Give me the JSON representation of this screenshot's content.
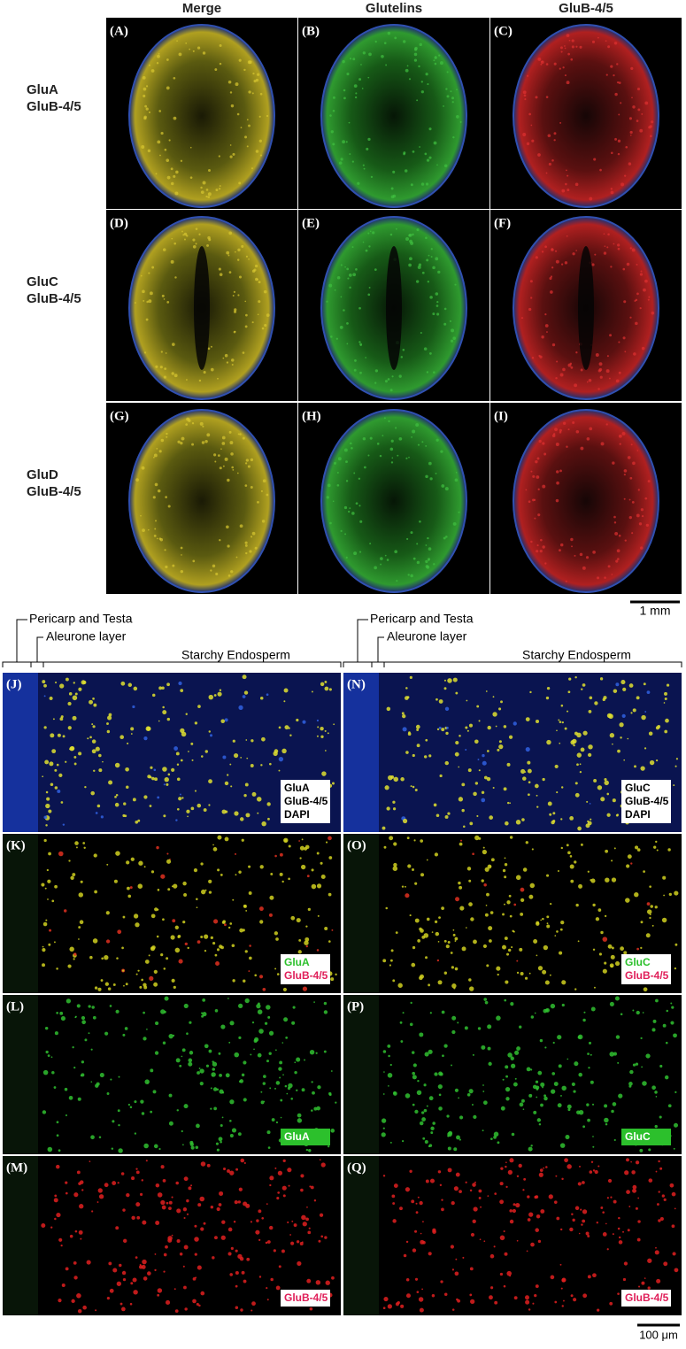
{
  "column_headers": [
    "Merge",
    "Glutelins",
    "GluB-4/5"
  ],
  "row_labels": [
    [
      "GluA",
      "GluB-4/5"
    ],
    [
      "GluC",
      "GluB-4/5"
    ],
    [
      "GluD",
      "GluB-4/5"
    ]
  ],
  "top_panels": [
    [
      "(A)",
      "(B)",
      "(C)"
    ],
    [
      "(D)",
      "(E)",
      "(F)"
    ],
    [
      "(G)",
      "(H)",
      "(I)"
    ]
  ],
  "top_scale_bar": "1 mm",
  "lower_columns": [
    {
      "pericarp_label": "Pericarp and Testa",
      "aleurone_label": "Aleurone layer",
      "endosperm_label": "Starchy Endosperm",
      "panels": [
        {
          "letter": "(J)",
          "legend": [
            "GluA",
            "GluB-4/5",
            "DAPI"
          ]
        },
        {
          "letter": "(K)",
          "legend": [
            "GluA",
            "GluB-4/5"
          ]
        },
        {
          "letter": "(L)",
          "legend": [
            "GluA"
          ]
        },
        {
          "letter": "(M)",
          "legend": [
            "GluB-4/5"
          ]
        }
      ]
    },
    {
      "pericarp_label": "Pericarp and Testa",
      "aleurone_label": "Aleurone layer",
      "endosperm_label": "Starchy Endosperm",
      "panels": [
        {
          "letter": "(N)",
          "legend": [
            "GluC",
            "GluB-4/5",
            "DAPI"
          ]
        },
        {
          "letter": "(O)",
          "legend": [
            "GluC",
            "GluB-4/5"
          ]
        },
        {
          "letter": "(P)",
          "legend": [
            "GluC"
          ]
        },
        {
          "letter": "(Q)",
          "legend": [
            "GluB-4/5"
          ]
        }
      ]
    }
  ],
  "bottom_scale_bar": "100 μm"
}
